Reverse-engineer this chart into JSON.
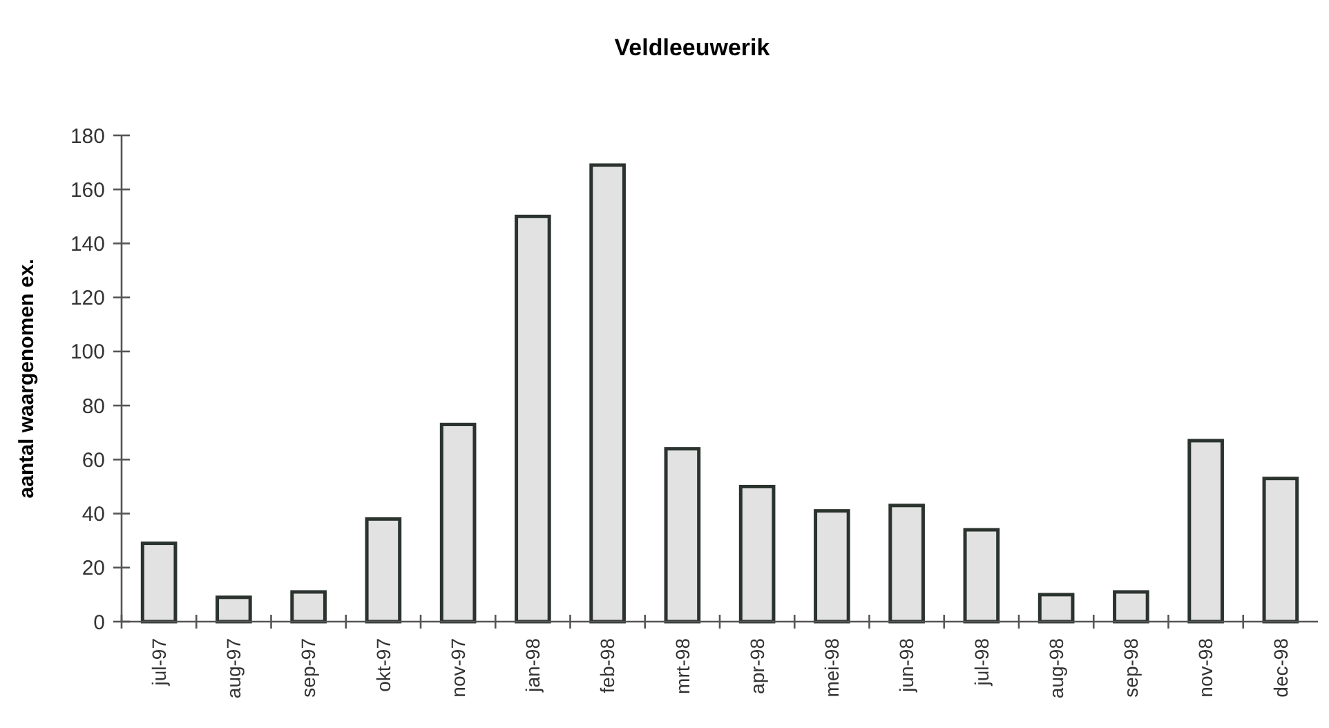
{
  "chart_data": {
    "type": "bar",
    "title": "Veldleeuwerik",
    "ylabel": "aantal waargenomen ex.",
    "categories": [
      "jul-97",
      "aug-97",
      "sep-97",
      "okt-97",
      "nov-97",
      "jan-98",
      "feb-98",
      "mrt-98",
      "apr-98",
      "mei-98",
      "jun-98",
      "jul-98",
      "aug-98",
      "sep-98",
      "nov-98",
      "dec-98"
    ],
    "values": [
      29,
      9,
      11,
      38,
      73,
      150,
      169,
      64,
      50,
      41,
      43,
      34,
      10,
      11,
      67,
      53
    ],
    "color": "#e2e2e2",
    "ylim": [
      0,
      180
    ],
    "yticks": [
      0,
      20,
      40,
      60,
      80,
      100,
      120,
      140,
      160,
      180
    ],
    "grid": false
  }
}
